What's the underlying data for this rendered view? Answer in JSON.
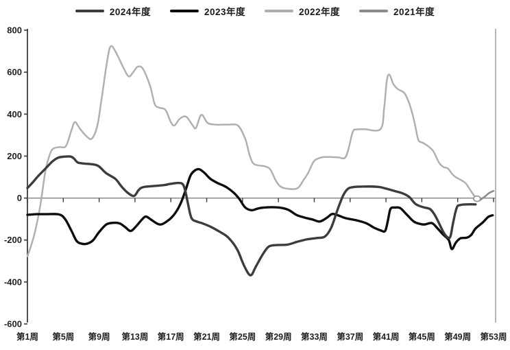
{
  "legend": {
    "items": [
      {
        "label": "2024年度"
      },
      {
        "label": "2023年度"
      },
      {
        "label": "2022年度"
      },
      {
        "label": "2021年度"
      }
    ]
  },
  "chart_data": {
    "type": "line",
    "title": "",
    "xlabel": "",
    "ylabel": "",
    "x_axis": {
      "tick_labels": [
        "第1周",
        "第5周",
        "第9周",
        "第13周",
        "第17周",
        "第21周",
        "第25周",
        "第29周",
        "第33周",
        "第37周",
        "第41周",
        "第45周",
        "第49周",
        "第53周"
      ],
      "tick_weeks": [
        1,
        5,
        9,
        13,
        17,
        21,
        25,
        29,
        33,
        37,
        41,
        45,
        49,
        53
      ],
      "range_weeks": [
        1,
        53
      ]
    },
    "y_axis": {
      "ticks": [
        800,
        600,
        400,
        200,
        0,
        -200,
        -400,
        -600
      ],
      "range": [
        -600,
        800
      ],
      "grid": false
    },
    "legend_position": "top-center",
    "series": [
      {
        "name": "2024年度",
        "color": "#3c3c3c",
        "width": 3.4,
        "points": [
          [
            1,
            48
          ],
          [
            1.6,
            75
          ],
          [
            2.2,
            105
          ],
          [
            3,
            140
          ],
          [
            3.8,
            175
          ],
          [
            4.4,
            192
          ],
          [
            5,
            197
          ],
          [
            5.8,
            198
          ],
          [
            6.2,
            188
          ],
          [
            6.6,
            170
          ],
          [
            7.2,
            165
          ],
          [
            8.4,
            160
          ],
          [
            9,
            150
          ],
          [
            9.8,
            118
          ],
          [
            10.8,
            92
          ],
          [
            11.5,
            55
          ],
          [
            12.2,
            25
          ],
          [
            12.9,
            10
          ],
          [
            13.4,
            38
          ],
          [
            13.9,
            52
          ],
          [
            15,
            57
          ],
          [
            16.3,
            62
          ],
          [
            17,
            68
          ],
          [
            18.2,
            70
          ],
          [
            18.6,
            35
          ],
          [
            18.9,
            -25
          ],
          [
            19.3,
            -95
          ],
          [
            19.9,
            -112
          ],
          [
            20.5,
            -120
          ],
          [
            21.5,
            -138
          ],
          [
            22.5,
            -162
          ],
          [
            23.4,
            -188
          ],
          [
            24.4,
            -245
          ],
          [
            25.2,
            -325
          ],
          [
            25.9,
            -368
          ],
          [
            26.5,
            -325
          ],
          [
            27.2,
            -272
          ],
          [
            27.9,
            -232
          ],
          [
            28.8,
            -224
          ],
          [
            30,
            -222
          ],
          [
            31.2,
            -207
          ],
          [
            32.3,
            -196
          ],
          [
            33.4,
            -190
          ],
          [
            34.2,
            -183
          ],
          [
            34.9,
            -140
          ],
          [
            35.6,
            -55
          ],
          [
            36.2,
            10
          ],
          [
            36.7,
            42
          ],
          [
            37.3,
            52
          ],
          [
            38.6,
            55
          ],
          [
            40.2,
            53
          ],
          [
            41,
            45
          ],
          [
            42,
            33
          ],
          [
            42.9,
            22
          ],
          [
            43.6,
            5
          ],
          [
            44.3,
            -28
          ],
          [
            45.1,
            -43
          ],
          [
            45.9,
            -52
          ],
          [
            46.4,
            -78
          ],
          [
            46.9,
            -118
          ],
          [
            47.4,
            -162
          ],
          [
            47.9,
            -188
          ],
          [
            48.2,
            -182
          ],
          [
            48.5,
            -115
          ],
          [
            48.9,
            -45
          ],
          [
            49.3,
            -33
          ],
          [
            50.1,
            -30
          ],
          [
            51,
            -30
          ]
        ]
      },
      {
        "name": "2023年度",
        "color": "#0d0d0d",
        "width": 3.4,
        "points": [
          [
            1,
            -80
          ],
          [
            2,
            -77
          ],
          [
            3,
            -77
          ],
          [
            4.5,
            -78
          ],
          [
            5.2,
            -100
          ],
          [
            5.9,
            -155
          ],
          [
            6.5,
            -205
          ],
          [
            7.1,
            -218
          ],
          [
            7.7,
            -217
          ],
          [
            8.3,
            -202
          ],
          [
            9,
            -162
          ],
          [
            9.8,
            -126
          ],
          [
            10.6,
            -118
          ],
          [
            11.3,
            -121
          ],
          [
            11.9,
            -138
          ],
          [
            12.5,
            -157
          ],
          [
            13.1,
            -136
          ],
          [
            13.7,
            -106
          ],
          [
            14.2,
            -88
          ],
          [
            14.8,
            -103
          ],
          [
            15.4,
            -120
          ],
          [
            15.9,
            -126
          ],
          [
            16.5,
            -113
          ],
          [
            17.1,
            -92
          ],
          [
            17.7,
            -58
          ],
          [
            18.2,
            -15
          ],
          [
            18.7,
            45
          ],
          [
            19.2,
            108
          ],
          [
            19.7,
            132
          ],
          [
            20.2,
            137
          ],
          [
            20.8,
            118
          ],
          [
            21.4,
            92
          ],
          [
            22.2,
            72
          ],
          [
            23.2,
            52
          ],
          [
            24.1,
            22
          ],
          [
            24.7,
            -8
          ],
          [
            25.3,
            -45
          ],
          [
            26,
            -58
          ],
          [
            26.7,
            -50
          ],
          [
            27.4,
            -45
          ],
          [
            28.7,
            -44
          ],
          [
            29.5,
            -48
          ],
          [
            30.2,
            -58
          ],
          [
            31,
            -80
          ],
          [
            31.9,
            -93
          ],
          [
            32.8,
            -102
          ],
          [
            33.6,
            -112
          ],
          [
            34.4,
            -94
          ],
          [
            35,
            -76
          ],
          [
            35.7,
            -83
          ],
          [
            36.5,
            -96
          ],
          [
            37.7,
            -106
          ],
          [
            38.8,
            -120
          ],
          [
            39.7,
            -142
          ],
          [
            40.4,
            -154
          ],
          [
            40.9,
            -157
          ],
          [
            41.2,
            -110
          ],
          [
            41.5,
            -52
          ],
          [
            42,
            -45
          ],
          [
            42.6,
            -48
          ],
          [
            43.3,
            -78
          ],
          [
            44.1,
            -112
          ],
          [
            44.7,
            -122
          ],
          [
            45.3,
            -126
          ],
          [
            46.1,
            -119
          ],
          [
            46.7,
            -142
          ],
          [
            47.4,
            -175
          ],
          [
            48,
            -200
          ],
          [
            48.35,
            -243
          ],
          [
            48.8,
            -212
          ],
          [
            49.3,
            -192
          ],
          [
            50,
            -189
          ],
          [
            50.5,
            -176
          ],
          [
            51,
            -145
          ],
          [
            51.8,
            -116
          ],
          [
            52.4,
            -90
          ],
          [
            52.9,
            -82
          ]
        ]
      },
      {
        "name": "2022年度",
        "color": "#b0b0b0",
        "width": 2.5,
        "points": [
          [
            1,
            -278
          ],
          [
            1.7,
            -185
          ],
          [
            2.4,
            -45
          ],
          [
            3,
            128
          ],
          [
            3.5,
            208
          ],
          [
            3.9,
            236
          ],
          [
            4.6,
            243
          ],
          [
            5.3,
            248
          ],
          [
            5.9,
            322
          ],
          [
            6.3,
            362
          ],
          [
            6.9,
            328
          ],
          [
            7.6,
            294
          ],
          [
            8.2,
            284
          ],
          [
            8.8,
            345
          ],
          [
            9.3,
            480
          ],
          [
            9.9,
            655
          ],
          [
            10.3,
            724
          ],
          [
            10.9,
            692
          ],
          [
            11.7,
            622
          ],
          [
            12.3,
            580
          ],
          [
            12.8,
            600
          ],
          [
            13.3,
            626
          ],
          [
            13.9,
            615
          ],
          [
            14.7,
            532
          ],
          [
            15.2,
            448
          ],
          [
            15.7,
            431
          ],
          [
            16.4,
            420
          ],
          [
            17,
            362
          ],
          [
            17.4,
            346
          ],
          [
            18,
            378
          ],
          [
            18.7,
            388
          ],
          [
            19.4,
            349
          ],
          [
            19.8,
            334
          ],
          [
            20.4,
            397
          ],
          [
            21.1,
            358
          ],
          [
            22,
            350
          ],
          [
            23.4,
            350
          ],
          [
            24.5,
            345
          ],
          [
            25.3,
            282
          ],
          [
            25.8,
            203
          ],
          [
            26.3,
            162
          ],
          [
            27.5,
            151
          ],
          [
            28.1,
            136
          ],
          [
            28.7,
            84
          ],
          [
            29.2,
            56
          ],
          [
            29.9,
            45
          ],
          [
            31.1,
            46
          ],
          [
            31.8,
            86
          ],
          [
            32.3,
            118
          ],
          [
            32.9,
            172
          ],
          [
            33.4,
            188
          ],
          [
            34.1,
            196
          ],
          [
            35.6,
            194
          ],
          [
            36.4,
            191
          ],
          [
            36.8,
            232
          ],
          [
            37.3,
            316
          ],
          [
            37.7,
            327
          ],
          [
            38.6,
            328
          ],
          [
            40.4,
            329
          ],
          [
            40.8,
            432
          ],
          [
            41.1,
            562
          ],
          [
            41.4,
            588
          ],
          [
            41.8,
            545
          ],
          [
            42.3,
            520
          ],
          [
            42.9,
            506
          ],
          [
            43.2,
            491
          ],
          [
            43.7,
            438
          ],
          [
            44.2,
            358
          ],
          [
            44.6,
            278
          ],
          [
            45.1,
            264
          ],
          [
            45.8,
            244
          ],
          [
            46.3,
            222
          ],
          [
            46.9,
            170
          ],
          [
            47.4,
            148
          ],
          [
            47.9,
            141
          ],
          [
            48.4,
            114
          ],
          [
            48.8,
            99
          ],
          [
            49.4,
            85
          ],
          [
            49.9,
            70
          ],
          [
            50.5,
            32
          ],
          [
            51,
            2
          ]
        ]
      },
      {
        "name": "2021年度",
        "color": "#8a8a8a",
        "width": 2.5,
        "points": [
          [
            51.4,
            -12
          ],
          [
            52,
            6
          ],
          [
            52.5,
            24
          ],
          [
            53,
            34
          ]
        ]
      }
    ],
    "end_marker": {
      "shape": "ring",
      "week": 51.15,
      "value": -3,
      "color": "#9a9a9a"
    }
  }
}
